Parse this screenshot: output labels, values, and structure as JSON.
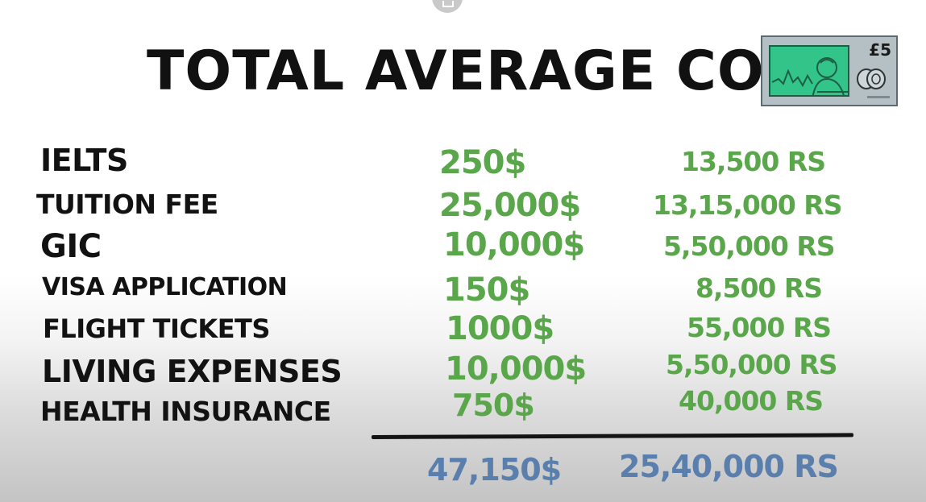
{
  "title": "TOTAL AVERAGE COST",
  "banknote": {
    "denomination": "£5",
    "icon": "banknote-icon"
  },
  "rows": [
    {
      "label": "IELTS",
      "usd": "250$",
      "inr": "13,500 RS"
    },
    {
      "label": "TUITION FEE",
      "usd": "25,000$",
      "inr": "13,15,000 RS"
    },
    {
      "label": "GIC",
      "usd": "10,000$",
      "inr": "5,50,000 RS"
    },
    {
      "label": "VISA APPLICATION",
      "usd": "150$",
      "inr": "8,500 RS"
    },
    {
      "label": "FLIGHT TICKETS",
      "usd": "1000$",
      "inr": "55,000 RS"
    },
    {
      "label": "LIVING EXPENSES",
      "usd": "10,000$",
      "inr": "5,50,000 RS"
    },
    {
      "label": "HEALTH INSURANCE",
      "usd": "750$",
      "inr": "40,000 RS"
    }
  ],
  "totals": {
    "usd": "47,150$",
    "inr": "25,40,000 RS"
  },
  "colors": {
    "amount": "#5aa64a",
    "total": "#5a7fad",
    "label": "#121212"
  }
}
